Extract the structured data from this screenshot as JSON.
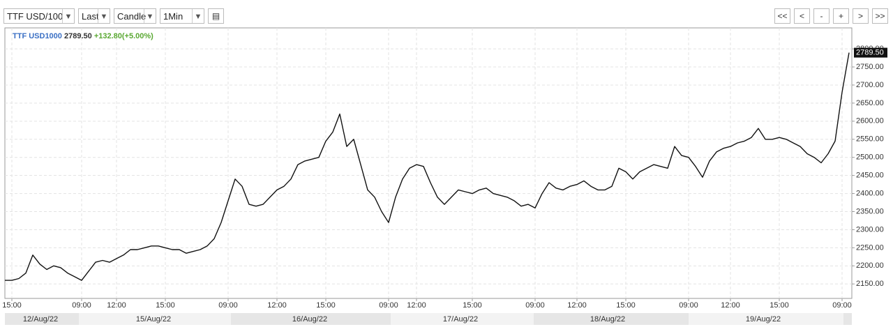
{
  "toolbar": {
    "symbol": "TTF USD/100",
    "price_type": "Last",
    "chart_type": "Candle",
    "interval": "1Min",
    "nav_buttons": [
      "<<",
      "<",
      "-",
      "+",
      ">",
      ">>"
    ]
  },
  "chart_data": {
    "type": "line",
    "legend": {
      "symbol": "TTF USD1000",
      "last": "2789.50",
      "change": "+132.80(+5.00%)"
    },
    "categories": [
      null,
      "15:00",
      null,
      null,
      null,
      null,
      null,
      null,
      null,
      null,
      null,
      "09:00",
      null,
      null,
      null,
      null,
      "12:00",
      null,
      null,
      null,
      null,
      null,
      null,
      "15:00",
      null,
      null,
      null,
      null,
      null,
      null,
      null,
      null,
      "09:00",
      null,
      null,
      null,
      null,
      null,
      null,
      "12:00",
      null,
      null,
      null,
      null,
      null,
      null,
      "15:00",
      null,
      null,
      null,
      null,
      null,
      null,
      null,
      null,
      "09:00",
      null,
      null,
      null,
      "12:00",
      null,
      null,
      null,
      null,
      null,
      null,
      null,
      "15:00",
      null,
      null,
      null,
      null,
      null,
      null,
      null,
      null,
      "09:00",
      null,
      null,
      null,
      null,
      null,
      "12:00",
      null,
      null,
      null,
      null,
      null,
      null,
      "15:00",
      null,
      null,
      null,
      null,
      null,
      null,
      null,
      null,
      "09:00",
      null,
      null,
      null,
      null,
      null,
      "12:00",
      null,
      null,
      null,
      null,
      null,
      null,
      "15:00",
      null,
      null,
      null,
      null,
      null,
      null,
      null,
      null,
      "09:00",
      null
    ],
    "values": [
      2160,
      2160,
      2165,
      2180,
      2230,
      2205,
      2190,
      2200,
      2195,
      2180,
      2170,
      2160,
      2185,
      2210,
      2215,
      2210,
      2220,
      2230,
      2245,
      2245,
      2250,
      2255,
      2255,
      2250,
      2245,
      2245,
      2235,
      2240,
      2245,
      2255,
      2275,
      2320,
      2380,
      2440,
      2420,
      2370,
      2365,
      2370,
      2390,
      2410,
      2420,
      2440,
      2480,
      2490,
      2495,
      2500,
      2545,
      2570,
      2620,
      2530,
      2550,
      2480,
      2410,
      2390,
      2350,
      2320,
      2390,
      2440,
      2470,
      2480,
      2475,
      2430,
      2390,
      2370,
      2390,
      2410,
      2405,
      2400,
      2410,
      2415,
      2400,
      2395,
      2390,
      2380,
      2365,
      2370,
      2360,
      2400,
      2430,
      2415,
      2410,
      2420,
      2425,
      2435,
      2420,
      2410,
      2410,
      2420,
      2470,
      2460,
      2440,
      2460,
      2470,
      2480,
      2475,
      2470,
      2530,
      2505,
      2500,
      2475,
      2445,
      2490,
      2515,
      2525,
      2530,
      2540,
      2545,
      2555,
      2580,
      2550,
      2550,
      2555,
      2550,
      2540,
      2530,
      2510,
      2500,
      2485,
      2510,
      2545,
      2680,
      2789.5
    ],
    "color": "#111111",
    "last_price": {
      "value": 2789.5,
      "label": "2789.50"
    },
    "ylim": [
      2110,
      2858
    ],
    "yticks": [
      {
        "value": 2150,
        "label": "2150.00"
      },
      {
        "value": 2200,
        "label": "2200.00"
      },
      {
        "value": 2250,
        "label": "2250.00"
      },
      {
        "value": 2300,
        "label": "2300.00"
      },
      {
        "value": 2350,
        "label": "2350.00"
      },
      {
        "value": 2400,
        "label": "2400.00"
      },
      {
        "value": 2450,
        "label": "2450.00"
      },
      {
        "value": 2500,
        "label": "2500.00"
      },
      {
        "value": 2550,
        "label": "2550.00"
      },
      {
        "value": 2600,
        "label": "2600.00"
      },
      {
        "value": 2650,
        "label": "2650.00"
      },
      {
        "value": 2700,
        "label": "2700.00"
      },
      {
        "value": 2750,
        "label": "2750.00"
      },
      {
        "value": 2800,
        "label": "2800.00"
      }
    ],
    "date_labels": [
      "12/Aug/22",
      "15/Aug/22",
      "16/Aug/22",
      "17/Aug/22",
      "18/Aug/22",
      "19/Aug/22"
    ],
    "grid": true
  }
}
